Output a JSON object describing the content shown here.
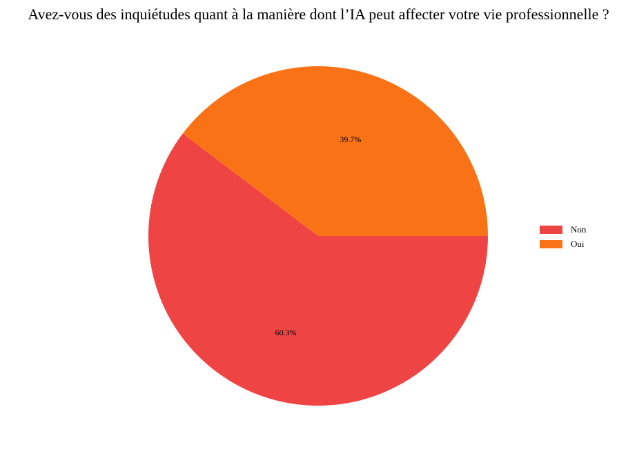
{
  "chart_data": {
    "type": "pie",
    "title": "Avez-vous des inquiétudes quant à la manière dont l’IA peut affecter votre vie professionnelle ?",
    "categories": [
      "Non",
      "Oui"
    ],
    "values": [
      60.3,
      39.7
    ],
    "labels": [
      "60.3%",
      "39.7%"
    ],
    "colors": [
      "#ef4444",
      "#f97316"
    ],
    "start_angle_deg": 0,
    "direction": "clockwise",
    "legend_placement": "right"
  }
}
